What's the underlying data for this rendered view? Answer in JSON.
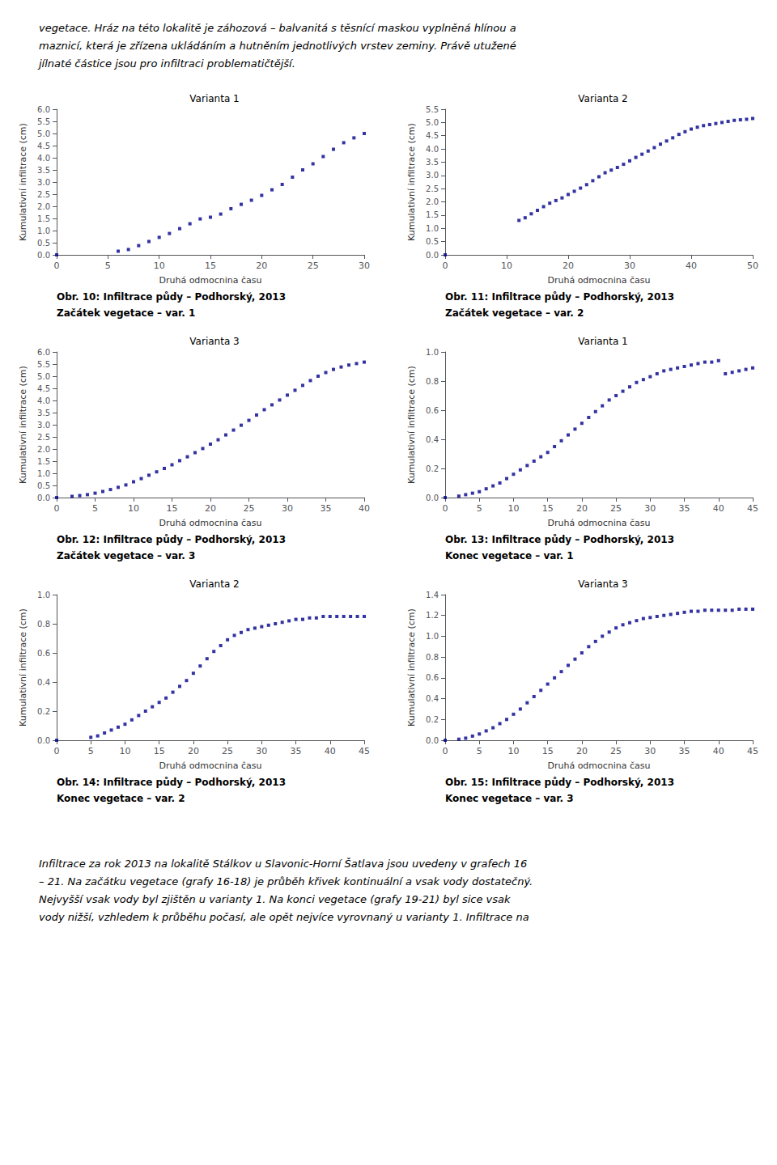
{
  "text_above": [
    "vegetace. Hráz na této lokalitě je záhozová – balvanitá s těsnící maskou vyplněná hlínou a",
    "maznicí, která je zřízena ukládáním a hutněním jednotlivých vrstev zeminy. Právě utužené",
    "jílnaté částice jsou pro infiltraci problematičtější."
  ],
  "text_below": [
    "Infiltrace za rok 2013 na lokalitě Stálkov u Slavonic-Horní Šatlava jsou uvedeny v grafech 16",
    "– 21. Na začátku vegetace (grafy 16-18) je průběh křivek kontinuální a vsak vody dostatečný.",
    "Nejvyšší vsak vody byl zjištěn u varianty 1. Na konci vegetace (grafy 19-21) byl sice vsak",
    "vody nižší, vzhledem k průběhu počasí, ale opět nejvíce vyrovnaný u varianty 1. Infiltrace na"
  ],
  "chart_data": [
    {
      "type": "scatter",
      "title": "Varianta 1",
      "xlabel": "Druhá odmocnina času",
      "ylabel": "Kumulativní infiltrace (cm)",
      "color": "#00008B",
      "marker": "square",
      "grid": false,
      "annotations": [
        "Obr. 10: Infiltrace půdy – Podhorský, 2013",
        "Začátek vegetace – var. 1"
      ],
      "xlim": [
        0,
        30
      ],
      "xticks": [
        0,
        5,
        10,
        15,
        20,
        25,
        30
      ],
      "ylim": [
        0,
        6
      ],
      "yticks": [
        {
          "value": 0,
          "label": "0.0"
        },
        0.5,
        {
          "value": 1,
          "label": "1.0"
        },
        1.5,
        {
          "value": 2,
          "label": "2.0"
        },
        2.5,
        {
          "value": 3,
          "label": "3.0"
        },
        3.5,
        {
          "value": 4,
          "label": "4.0"
        },
        4.5,
        {
          "value": 5,
          "label": "5.0"
        },
        5.5,
        {
          "value": 6,
          "label": "6.0"
        }
      ],
      "x": [
        0,
        6,
        7,
        8,
        9,
        10,
        11,
        12,
        13,
        14,
        15,
        16,
        17,
        18,
        19,
        20,
        21,
        22,
        23,
        24,
        25,
        26,
        27,
        28,
        29,
        30
      ],
      "values": [
        0,
        0.15,
        0.22,
        0.38,
        0.55,
        0.72,
        0.88,
        1.08,
        1.28,
        1.48,
        1.55,
        1.68,
        1.9,
        2.08,
        2.25,
        2.45,
        2.68,
        2.9,
        3.2,
        3.5,
        3.75,
        4.05,
        4.35,
        4.62,
        4.82,
        5.0
      ]
    },
    {
      "type": "scatter",
      "title": "Varianta 2",
      "xlabel": "Druhá odmocnina času",
      "ylabel": "Kumulativní infiltrace (cm)",
      "color": "#00008B",
      "marker": "square",
      "grid": false,
      "annotations": [
        "Obr. 11: Infiltrace půdy – Podhorský, 2013",
        "Začátek vegetace – var. 2"
      ],
      "xlim": [
        0,
        50
      ],
      "xticks": [
        0,
        10,
        20,
        30,
        40,
        50
      ],
      "ylim": [
        0,
        5.5
      ],
      "yticks": [
        {
          "value": 0,
          "label": "0.0"
        },
        0.5,
        {
          "value": 1,
          "label": "1.0"
        },
        1.5,
        {
          "value": 2,
          "label": "2.0"
        },
        2.5,
        {
          "value": 3,
          "label": "3.0"
        },
        3.5,
        {
          "value": 4,
          "label": "4.0"
        },
        4.5,
        {
          "value": 5,
          "label": "5.0"
        },
        5.5
      ],
      "x": [
        0,
        12,
        13,
        14,
        15,
        16,
        17,
        18,
        19,
        20,
        21,
        22,
        23,
        24,
        25,
        26,
        27,
        28,
        29,
        30,
        31,
        32,
        33,
        34,
        35,
        36,
        37,
        38,
        39,
        40,
        41,
        42,
        43,
        44,
        45,
        46,
        47,
        48,
        49,
        50
      ],
      "values": [
        0,
        1.3,
        1.4,
        1.55,
        1.68,
        1.82,
        1.95,
        2.05,
        2.15,
        2.28,
        2.4,
        2.52,
        2.65,
        2.8,
        2.95,
        3.1,
        3.2,
        3.3,
        3.42,
        3.55,
        3.68,
        3.8,
        3.92,
        4.05,
        4.18,
        4.3,
        4.42,
        4.55,
        4.65,
        4.75,
        4.82,
        4.88,
        4.92,
        4.96,
        5.0,
        5.04,
        5.08,
        5.1,
        5.12,
        5.15
      ]
    },
    {
      "type": "scatter",
      "title": "Varianta 3",
      "xlabel": "Druhá odmocnina času",
      "ylabel": "Kumulativní infiltrace (cm)",
      "color": "#00008B",
      "marker": "square",
      "grid": false,
      "annotations": [
        "Obr. 12: Infiltrace půdy – Podhorský, 2013",
        "Začátek vegetace – var. 3"
      ],
      "xlim": [
        0,
        40
      ],
      "xticks": [
        0,
        5,
        10,
        15,
        20,
        25,
        30,
        35,
        40
      ],
      "ylim": [
        0,
        6
      ],
      "yticks": [
        {
          "value": 0,
          "label": "0.0"
        },
        0.5,
        {
          "value": 1,
          "label": "1.0"
        },
        1.5,
        {
          "value": 2,
          "label": "2.0"
        },
        2.5,
        {
          "value": 3,
          "label": "3.0"
        },
        3.5,
        {
          "value": 4,
          "label": "4.0"
        },
        4.5,
        {
          "value": 5,
          "label": "5.0"
        },
        5.5,
        {
          "value": 6,
          "label": "6.0"
        }
      ],
      "x": [
        0,
        2,
        3,
        4,
        5,
        6,
        7,
        8,
        9,
        10,
        11,
        12,
        13,
        14,
        15,
        16,
        17,
        18,
        19,
        20,
        21,
        22,
        23,
        24,
        25,
        26,
        27,
        28,
        29,
        30,
        31,
        32,
        33,
        34,
        35,
        36,
        37,
        38,
        39,
        40
      ],
      "values": [
        0,
        0.05,
        0.08,
        0.12,
        0.18,
        0.25,
        0.33,
        0.42,
        0.52,
        0.65,
        0.78,
        0.92,
        1.06,
        1.2,
        1.35,
        1.52,
        1.68,
        1.85,
        2.02,
        2.2,
        2.38,
        2.58,
        2.78,
        2.98,
        3.18,
        3.4,
        3.62,
        3.82,
        4.02,
        4.22,
        4.42,
        4.62,
        4.82,
        5.0,
        5.15,
        5.28,
        5.38,
        5.46,
        5.52,
        5.58
      ]
    },
    {
      "type": "scatter",
      "title": "Varianta 1",
      "xlabel": "Druhá odmocnina času",
      "ylabel": "Kumulativní infiltrace (cm)",
      "color": "#00008B",
      "marker": "square",
      "grid": false,
      "annotations": [
        "Obr. 13: Infiltrace půdy – Podhorský, 2013",
        "Konec vegetace – var. 1"
      ],
      "xlim": [
        0,
        45
      ],
      "xticks": [
        0,
        5,
        10,
        15,
        20,
        25,
        30,
        35,
        40,
        45
      ],
      "ylim": [
        0,
        1
      ],
      "yticks": [
        {
          "value": 0,
          "label": "0.0"
        },
        0.2,
        0.4,
        0.6,
        0.8,
        {
          "value": 1,
          "label": "1.0"
        }
      ],
      "x": [
        0,
        2,
        3,
        4,
        5,
        6,
        7,
        8,
        9,
        10,
        11,
        12,
        13,
        14,
        15,
        16,
        17,
        18,
        19,
        20,
        21,
        22,
        23,
        24,
        25,
        26,
        27,
        28,
        29,
        30,
        31,
        32,
        33,
        34,
        35,
        36,
        37,
        38,
        39,
        40,
        41,
        42,
        43,
        44,
        45
      ],
      "values": [
        0,
        0.01,
        0.02,
        0.03,
        0.04,
        0.06,
        0.08,
        0.1,
        0.13,
        0.16,
        0.19,
        0.22,
        0.25,
        0.28,
        0.31,
        0.35,
        0.39,
        0.43,
        0.47,
        0.51,
        0.55,
        0.59,
        0.63,
        0.67,
        0.7,
        0.73,
        0.76,
        0.79,
        0.81,
        0.83,
        0.85,
        0.87,
        0.88,
        0.89,
        0.9,
        0.91,
        0.92,
        0.93,
        0.93,
        0.94,
        0.85,
        0.86,
        0.87,
        0.88,
        0.89
      ]
    },
    {
      "type": "scatter",
      "title": "Varianta 2",
      "xlabel": "Druhá odmocnina času",
      "ylabel": "Kumulativní infiltrace (cm)",
      "color": "#00008B",
      "marker": "square",
      "grid": false,
      "annotations": [
        "Obr. 14: Infiltrace půdy – Podhorský, 2013",
        "Konec vegetace – var. 2"
      ],
      "xlim": [
        0,
        45
      ],
      "xticks": [
        0,
        5,
        10,
        15,
        20,
        25,
        30,
        35,
        40,
        45
      ],
      "ylim": [
        0,
        1
      ],
      "yticks": [
        {
          "value": 0,
          "label": "0.0"
        },
        0.2,
        0.4,
        0.6,
        0.8,
        {
          "value": 1,
          "label": "1.0"
        }
      ],
      "x": [
        0,
        5,
        6,
        7,
        8,
        9,
        10,
        11,
        12,
        13,
        14,
        15,
        16,
        17,
        18,
        19,
        20,
        21,
        22,
        23,
        24,
        25,
        26,
        27,
        28,
        29,
        30,
        31,
        32,
        33,
        34,
        35,
        36,
        37,
        38,
        39,
        40,
        41,
        42,
        43,
        44,
        45
      ],
      "values": [
        0,
        0.02,
        0.03,
        0.05,
        0.07,
        0.09,
        0.11,
        0.14,
        0.17,
        0.2,
        0.23,
        0.26,
        0.29,
        0.33,
        0.37,
        0.41,
        0.46,
        0.51,
        0.56,
        0.61,
        0.65,
        0.69,
        0.72,
        0.74,
        0.76,
        0.77,
        0.78,
        0.79,
        0.8,
        0.81,
        0.82,
        0.83,
        0.83,
        0.84,
        0.84,
        0.85,
        0.85,
        0.85,
        0.85,
        0.85,
        0.85,
        0.85
      ]
    },
    {
      "type": "scatter",
      "title": "Varianta 3",
      "xlabel": "Druhá odmocnina času",
      "ylabel": "Kumulativní infiltrace (cm)",
      "color": "#00008B",
      "marker": "square",
      "grid": false,
      "annotations": [
        "Obr. 15: Infiltrace půdy – Podhorský, 2013",
        "Konec vegetace – var. 3"
      ],
      "xlim": [
        0,
        45
      ],
      "xticks": [
        0,
        5,
        10,
        15,
        20,
        25,
        30,
        35,
        40,
        45
      ],
      "ylim": [
        0,
        1.4
      ],
      "yticks": [
        {
          "value": 0,
          "label": "0.0"
        },
        0.2,
        0.4,
        0.6,
        0.8,
        {
          "value": 1,
          "label": "1.0"
        },
        1.2,
        1.4
      ],
      "x": [
        0,
        2,
        3,
        4,
        5,
        6,
        7,
        8,
        9,
        10,
        11,
        12,
        13,
        14,
        15,
        16,
        17,
        18,
        19,
        20,
        21,
        22,
        23,
        24,
        25,
        26,
        27,
        28,
        29,
        30,
        31,
        32,
        33,
        34,
        35,
        36,
        37,
        38,
        39,
        40,
        41,
        42,
        43,
        44,
        45
      ],
      "values": [
        0,
        0.01,
        0.02,
        0.04,
        0.06,
        0.09,
        0.12,
        0.16,
        0.2,
        0.25,
        0.3,
        0.36,
        0.42,
        0.48,
        0.54,
        0.6,
        0.66,
        0.72,
        0.78,
        0.84,
        0.9,
        0.95,
        1.0,
        1.04,
        1.08,
        1.11,
        1.13,
        1.15,
        1.17,
        1.18,
        1.19,
        1.2,
        1.21,
        1.22,
        1.23,
        1.24,
        1.24,
        1.25,
        1.25,
        1.25,
        1.25,
        1.25,
        1.26,
        1.26,
        1.26
      ]
    }
  ]
}
